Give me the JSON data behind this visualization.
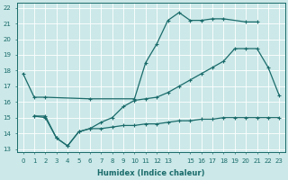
{
  "xlabel": "Humidex (Indice chaleur)",
  "bg_color": "#cce8e8",
  "line_color": "#1a6b6b",
  "grid_color": "#ffffff",
  "xlim": [
    -0.5,
    23.5
  ],
  "ylim": [
    12.8,
    22.3
  ],
  "xtick_labels": [
    "0",
    "1",
    "2",
    "3",
    "4",
    "5",
    "6",
    "7",
    "8",
    "9",
    "10",
    "11",
    "12",
    "13",
    "",
    "15",
    "16",
    "17",
    "18",
    "19",
    "20",
    "21",
    "22",
    "23"
  ],
  "xtick_vals": [
    0,
    1,
    2,
    3,
    4,
    5,
    6,
    7,
    8,
    9,
    10,
    11,
    12,
    13,
    14,
    15,
    16,
    17,
    18,
    19,
    20,
    21,
    22,
    23
  ],
  "yticks": [
    13,
    14,
    15,
    16,
    17,
    18,
    19,
    20,
    21,
    22
  ],
  "series": [
    {
      "x": [
        0,
        1,
        2,
        6,
        10,
        11,
        12,
        13,
        14,
        15,
        16,
        17,
        18,
        20,
        21
      ],
      "y": [
        17.8,
        16.3,
        16.3,
        16.2,
        16.2,
        18.5,
        19.7,
        21.2,
        21.7,
        21.2,
        21.2,
        21.3,
        21.3,
        21.1,
        21.1
      ]
    },
    {
      "x": [
        1,
        2,
        3,
        4,
        5,
        6,
        7,
        8,
        9,
        10,
        11,
        12,
        13,
        14,
        15,
        16,
        17,
        18,
        19,
        20,
        21,
        22,
        23
      ],
      "y": [
        15.1,
        15.1,
        13.7,
        13.2,
        14.1,
        14.3,
        14.7,
        15.0,
        15.7,
        16.1,
        16.2,
        16.3,
        16.6,
        17.0,
        17.4,
        17.8,
        18.2,
        18.6,
        19.4,
        19.4,
        19.4,
        18.2,
        16.4
      ]
    },
    {
      "x": [
        1,
        2,
        3,
        4,
        5,
        6,
        7,
        8,
        9,
        10,
        11,
        12,
        13,
        14,
        15,
        16,
        17,
        18,
        19,
        20,
        21,
        22,
        23
      ],
      "y": [
        15.1,
        15.0,
        13.7,
        13.2,
        14.1,
        14.3,
        14.3,
        14.4,
        14.5,
        14.5,
        14.6,
        14.6,
        14.7,
        14.8,
        14.8,
        14.9,
        14.9,
        15.0,
        15.0,
        15.0,
        15.0,
        15.0,
        15.0
      ]
    }
  ]
}
